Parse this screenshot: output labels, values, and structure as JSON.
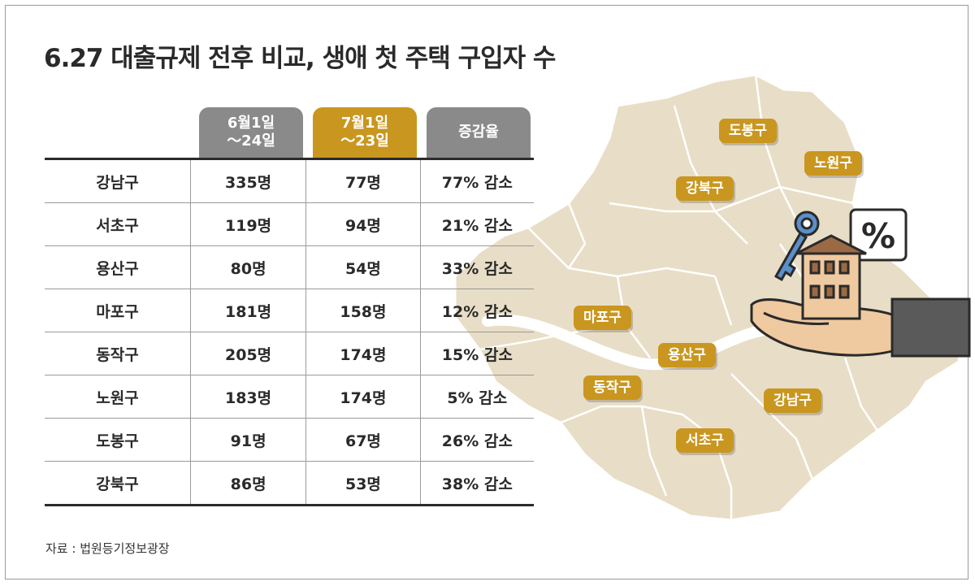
{
  "title": "6.27 대출규제 전후 비교, 생애 첫 주택 구입자 수",
  "colors": {
    "accent": "#c9961f",
    "header_gray": "#8a8a8a",
    "map_fill": "#e8ddc6"
  },
  "headers": {
    "period1": [
      "6월1일",
      "～24일"
    ],
    "period2": [
      "7월1일",
      "～23일"
    ],
    "change": "증감율"
  },
  "rows": [
    {
      "district": "강남구",
      "jun": "335명",
      "jul": "77명",
      "rate": "77% 감소"
    },
    {
      "district": "서초구",
      "jun": "119명",
      "jul": "94명",
      "rate": "21% 감소"
    },
    {
      "district": "용산구",
      "jun": "80명",
      "jul": "54명",
      "rate": "33% 감소"
    },
    {
      "district": "마포구",
      "jun": "181명",
      "jul": "158명",
      "rate": "12% 감소"
    },
    {
      "district": "동작구",
      "jun": "205명",
      "jul": "174명",
      "rate": "15% 감소"
    },
    {
      "district": "노원구",
      "jun": "183명",
      "jul": "174명",
      "rate": "5% 감소"
    },
    {
      "district": "도봉구",
      "jun": "91명",
      "jul": "67명",
      "rate": "26% 감소"
    },
    {
      "district": "강북구",
      "jun": "86명",
      "jul": "53명",
      "rate": "38% 감소"
    }
  ],
  "map_labels": [
    "도봉구",
    "노원구",
    "강북구",
    "마포구",
    "용산구",
    "동작구",
    "강남구",
    "서초구"
  ],
  "icons": [
    "seoul-map",
    "key-icon",
    "house-icon",
    "percent-icon",
    "hand-icon"
  ],
  "source": "자료 : 법원등기정보광장",
  "chart_data": {
    "type": "table",
    "title": "6.27 대출규제 전후 비교, 생애 첫 주택 구입자 수",
    "columns": [
      "6월1일～24일",
      "7월1일～23일",
      "증감율"
    ],
    "categories": [
      "강남구",
      "서초구",
      "용산구",
      "마포구",
      "동작구",
      "노원구",
      "도봉구",
      "강북구"
    ],
    "series": [
      {
        "name": "6월1일～24일",
        "values": [
          335,
          119,
          80,
          181,
          205,
          183,
          91,
          86
        ]
      },
      {
        "name": "7월1일～23일",
        "values": [
          77,
          94,
          54,
          158,
          174,
          174,
          67,
          53
        ]
      },
      {
        "name": "증감율",
        "values": [
          -77,
          -21,
          -33,
          -12,
          -15,
          -5,
          -26,
          -38
        ]
      }
    ],
    "units": {
      "counts": "명",
      "rate": "%"
    }
  }
}
